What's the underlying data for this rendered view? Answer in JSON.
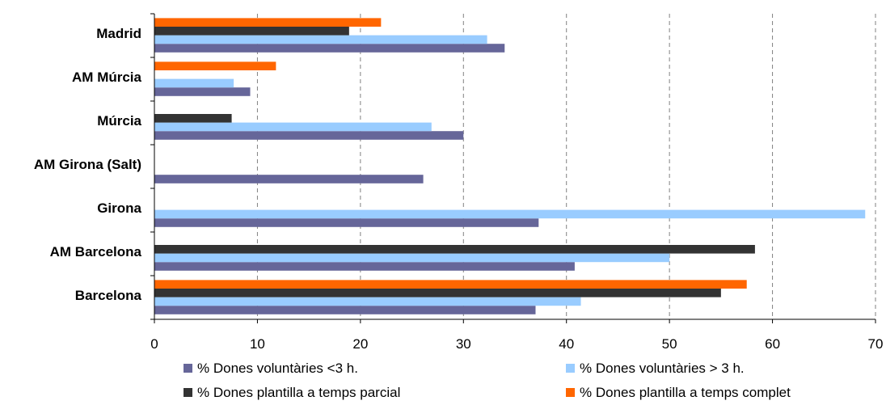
{
  "chart_data": {
    "type": "bar",
    "orientation": "horizontal",
    "categories": [
      "Madrid",
      "AM Múrcia",
      "Múrcia",
      "AM Girona (Salt)",
      "Girona",
      "AM Barcelona",
      "Barcelona"
    ],
    "series": [
      {
        "name": "% Dones voluntàries <3 h.",
        "color": "#666699",
        "values": [
          34,
          9.3,
          30,
          26.1,
          37.3,
          40.8,
          37
        ]
      },
      {
        "name": "% Dones voluntàries > 3 h.",
        "color": "#99ccff",
        "values": [
          32.3,
          7.7,
          26.9,
          null,
          69,
          50,
          41.4
        ]
      },
      {
        "name": "% Dones plantilla a temps parcial",
        "color": "#333333",
        "values": [
          18.9,
          null,
          7.5,
          null,
          null,
          58.3,
          55
        ]
      },
      {
        "name": "% Dones plantilla a temps complet",
        "color": "#ff6600",
        "values": [
          22,
          11.8,
          null,
          null,
          null,
          null,
          57.5
        ]
      }
    ],
    "xlim": [
      0,
      70
    ],
    "xticks": [
      "0",
      "10",
      "20",
      "30",
      "40",
      "50",
      "60",
      "70"
    ],
    "grid": "vertical dashed",
    "legend_position": "bottom"
  }
}
